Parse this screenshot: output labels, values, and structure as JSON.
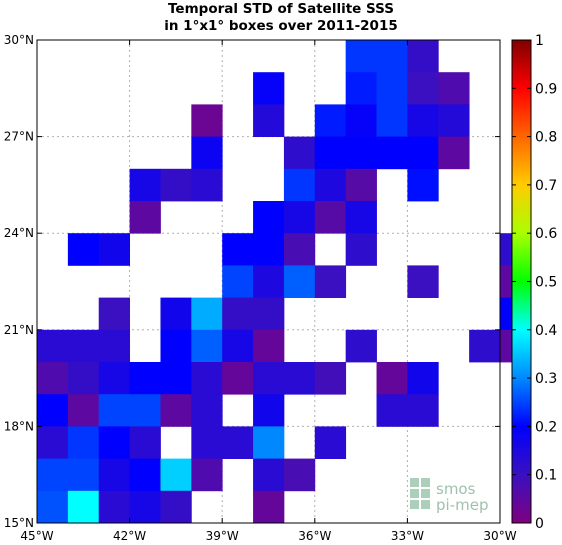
{
  "chart_data": {
    "type": "heatmap",
    "title": "Temporal STD of Satellite SSS",
    "subtitle": "in 1°x1° boxes over 2011-2015",
    "x_range": [
      -45,
      -30
    ],
    "y_range": [
      15,
      30
    ],
    "x_ticks": [
      {
        "value": -45,
        "label": "45°W"
      },
      {
        "value": -42,
        "label": "42°W"
      },
      {
        "value": -39,
        "label": "39°W"
      },
      {
        "value": -36,
        "label": "36°W"
      },
      {
        "value": -33,
        "label": "33°W"
      },
      {
        "value": -30,
        "label": "30°W"
      }
    ],
    "y_ticks": [
      {
        "value": 15,
        "label": "15°N"
      },
      {
        "value": 18,
        "label": "18°N"
      },
      {
        "value": 21,
        "label": "21°N"
      },
      {
        "value": 24,
        "label": "24°N"
      },
      {
        "value": 27,
        "label": "27°N"
      },
      {
        "value": 30,
        "label": "30°N"
      }
    ],
    "grid": true,
    "colorbar": {
      "min": 0,
      "max": 1,
      "ticks": [
        {
          "value": 0,
          "label": "0"
        },
        {
          "value": 0.1,
          "label": "0.1"
        },
        {
          "value": 0.2,
          "label": "0.2"
        },
        {
          "value": 0.3,
          "label": "0.3"
        },
        {
          "value": 0.4,
          "label": "0.4"
        },
        {
          "value": 0.5,
          "label": "0.5"
        },
        {
          "value": 0.6,
          "label": "0.6"
        },
        {
          "value": 0.7,
          "label": "0.7"
        },
        {
          "value": 0.8,
          "label": "0.8"
        },
        {
          "value": 0.9,
          "label": "0.9"
        },
        {
          "value": 1,
          "label": "1"
        }
      ]
    },
    "cell_size_deg": 1,
    "cells_note_order": "each row: [lat_bottom, [[lon_left, value], ...]]",
    "rows": [
      [
        29,
        [
          [
            -35,
            0.24
          ],
          [
            -34,
            0.24
          ],
          [
            -33,
            0.11
          ]
        ]
      ],
      [
        28,
        [
          [
            -38,
            0.19
          ],
          [
            -35,
            0.22
          ],
          [
            -34,
            0.24
          ],
          [
            -33,
            0.1
          ],
          [
            -32,
            0.07
          ]
        ]
      ],
      [
        27,
        [
          [
            -40,
            0.03
          ],
          [
            -38,
            0.14
          ],
          [
            -36,
            0.22
          ],
          [
            -35,
            0.19
          ],
          [
            -34,
            0.24
          ],
          [
            -33,
            0.16
          ],
          [
            -32,
            0.14
          ]
        ]
      ],
      [
        26,
        [
          [
            -40,
            0.18
          ],
          [
            -37,
            0.12
          ],
          [
            -36,
            0.2
          ],
          [
            -35,
            0.2
          ],
          [
            -34,
            0.2
          ],
          [
            -33,
            0.2
          ],
          [
            -32,
            0.05
          ]
        ]
      ],
      [
        25,
        [
          [
            -42,
            0.16
          ],
          [
            -41,
            0.11
          ],
          [
            -40,
            0.13
          ],
          [
            -37,
            0.24
          ],
          [
            -36,
            0.15
          ],
          [
            -35,
            0.06
          ],
          [
            -33,
            0.21
          ]
        ]
      ],
      [
        24,
        [
          [
            -42,
            0.05
          ],
          [
            -38,
            0.2
          ],
          [
            -37,
            0.16
          ],
          [
            -36,
            0.06
          ],
          [
            -35,
            0.16
          ]
        ]
      ],
      [
        23,
        [
          [
            -44,
            0.2
          ],
          [
            -43,
            0.17
          ],
          [
            -39,
            0.2
          ],
          [
            -38,
            0.2
          ],
          [
            -37,
            0.08
          ],
          [
            -35,
            0.12
          ],
          [
            -30,
            0.12
          ]
        ]
      ],
      [
        22,
        [
          [
            -39,
            0.25
          ],
          [
            -38,
            0.15
          ],
          [
            -37,
            0.27
          ],
          [
            -36,
            0.1
          ],
          [
            -33,
            0.1
          ],
          [
            -30,
            0.05
          ]
        ]
      ],
      [
        21,
        [
          [
            -43,
            0.1
          ],
          [
            -41,
            0.17
          ],
          [
            -40,
            0.33
          ],
          [
            -39,
            0.11
          ],
          [
            -38,
            0.11
          ],
          [
            -30,
            0.2
          ]
        ]
      ],
      [
        20,
        [
          [
            -45,
            0.13
          ],
          [
            -44,
            0.13
          ],
          [
            -43,
            0.13
          ],
          [
            -41,
            0.2
          ],
          [
            -40,
            0.27
          ],
          [
            -39,
            0.16
          ],
          [
            -38,
            0.04
          ],
          [
            -35,
            0.12
          ],
          [
            -31,
            0.12
          ],
          [
            -30,
            0.05
          ]
        ]
      ],
      [
        19,
        [
          [
            -45,
            0.07
          ],
          [
            -44,
            0.11
          ],
          [
            -43,
            0.16
          ],
          [
            -42,
            0.2
          ],
          [
            -41,
            0.2
          ],
          [
            -40,
            0.13
          ],
          [
            -39,
            0.04
          ],
          [
            -38,
            0.13
          ],
          [
            -37,
            0.13
          ],
          [
            -36,
            0.09
          ],
          [
            -34,
            0.04
          ],
          [
            -33,
            0.17
          ]
        ]
      ],
      [
        18,
        [
          [
            -45,
            0.2
          ],
          [
            -44,
            0.05
          ],
          [
            -43,
            0.25
          ],
          [
            -42,
            0.25
          ],
          [
            -41,
            0.05
          ],
          [
            -40,
            0.13
          ],
          [
            -38,
            0.17
          ],
          [
            -34,
            0.13
          ],
          [
            -33,
            0.13
          ]
        ]
      ],
      [
        17,
        [
          [
            -45,
            0.13
          ],
          [
            -44,
            0.24
          ],
          [
            -43,
            0.2
          ],
          [
            -42,
            0.13
          ],
          [
            -40,
            0.13
          ],
          [
            -39,
            0.13
          ],
          [
            -38,
            0.3
          ],
          [
            -36,
            0.13
          ]
        ]
      ],
      [
        16,
        [
          [
            -45,
            0.25
          ],
          [
            -44,
            0.25
          ],
          [
            -43,
            0.16
          ],
          [
            -42,
            0.2
          ],
          [
            -41,
            0.36
          ],
          [
            -40,
            0.07
          ],
          [
            -38,
            0.13
          ],
          [
            -37,
            0.08
          ]
        ]
      ],
      [
        15,
        [
          [
            -45,
            0.26
          ],
          [
            -44,
            0.4
          ],
          [
            -43,
            0.13
          ],
          [
            -42,
            0.16
          ],
          [
            -41,
            0.11
          ],
          [
            -38,
            0.04
          ]
        ]
      ]
    ]
  },
  "logo": {
    "line1": "smos",
    "line2": "pi-mep"
  }
}
